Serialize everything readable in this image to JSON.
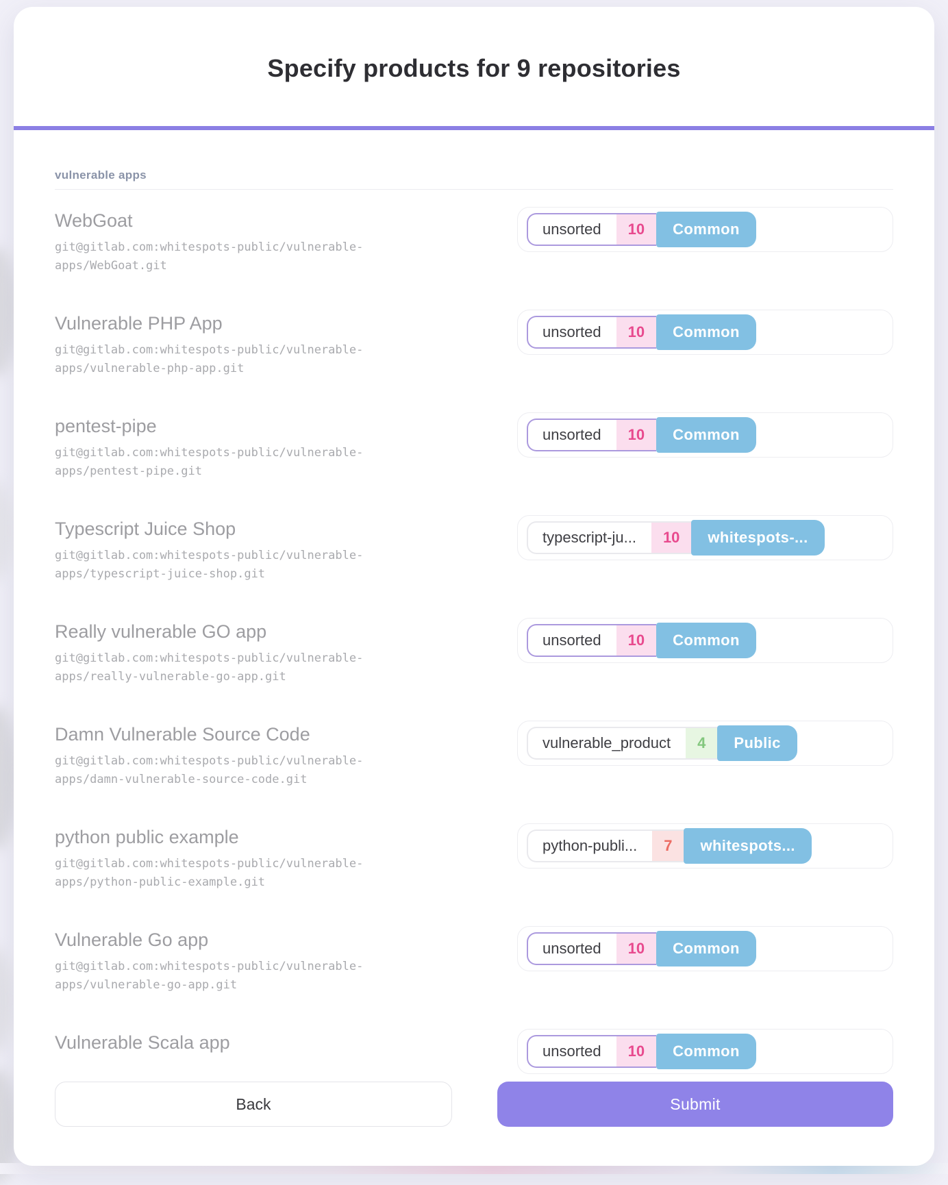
{
  "title": "Specify products for 9 repositories",
  "section": {
    "label": "vulnerable apps"
  },
  "repositories": [
    {
      "name": "WebGoat",
      "url": "git@gitlab.com:whitespots-public/vulnerable-apps/WebGoat.git",
      "selector": {
        "value": "unsorted",
        "count": "10",
        "count_color": "pink",
        "badge": "Common",
        "highlight": true
      }
    },
    {
      "name": "Vulnerable PHP App",
      "url": "git@gitlab.com:whitespots-public/vulnerable-apps/vulnerable-php-app.git",
      "selector": {
        "value": "unsorted",
        "count": "10",
        "count_color": "pink",
        "badge": "Common",
        "highlight": true
      }
    },
    {
      "name": "pentest-pipe",
      "url": "git@gitlab.com:whitespots-public/vulnerable-apps/pentest-pipe.git",
      "selector": {
        "value": "unsorted",
        "count": "10",
        "count_color": "pink",
        "badge": "Common",
        "highlight": true
      }
    },
    {
      "name": "Typescript Juice Shop",
      "url": "git@gitlab.com:whitespots-public/vulnerable-apps/typescript-juice-shop.git",
      "selector": {
        "value": "typescript-ju...",
        "count": "10",
        "count_color": "pink",
        "badge": "whitespots-...",
        "highlight": false
      }
    },
    {
      "name": "Really vulnerable GO app",
      "url": "git@gitlab.com:whitespots-public/vulnerable-apps/really-vulnerable-go-app.git",
      "selector": {
        "value": "unsorted",
        "count": "10",
        "count_color": "pink",
        "badge": "Common",
        "highlight": true
      }
    },
    {
      "name": "Damn Vulnerable Source Code",
      "url": "git@gitlab.com:whitespots-public/vulnerable-apps/damn-vulnerable-source-code.git",
      "selector": {
        "value": "vulnerable_product",
        "count": "4",
        "count_color": "green",
        "badge": "Public",
        "highlight": false
      }
    },
    {
      "name": "python public example",
      "url": "git@gitlab.com:whitespots-public/vulnerable-apps/python-public-example.git",
      "selector": {
        "value": "python-publi...",
        "count": "7",
        "count_color": "red",
        "badge": "whitespots...",
        "highlight": false
      }
    },
    {
      "name": "Vulnerable Go app",
      "url": "git@gitlab.com:whitespots-public/vulnerable-apps/vulnerable-go-app.git",
      "selector": {
        "value": "unsorted",
        "count": "10",
        "count_color": "pink",
        "badge": "Common",
        "highlight": true
      }
    },
    {
      "name": "Vulnerable Scala app",
      "url": "",
      "selector": {
        "value": "unsorted",
        "count": "10",
        "count_color": "pink",
        "badge": "Common",
        "highlight": true
      }
    }
  ],
  "footer": {
    "back": "Back",
    "submit": "Submit"
  },
  "colors": {
    "accent": "#8b7fe4",
    "submit_purple": "#8f83e8",
    "badge_blue": "#82c0e3",
    "count_pink": "#e84a8e",
    "count_red": "#ec6c63",
    "count_green": "#83c77e",
    "highlight_border": "#ab99de"
  }
}
